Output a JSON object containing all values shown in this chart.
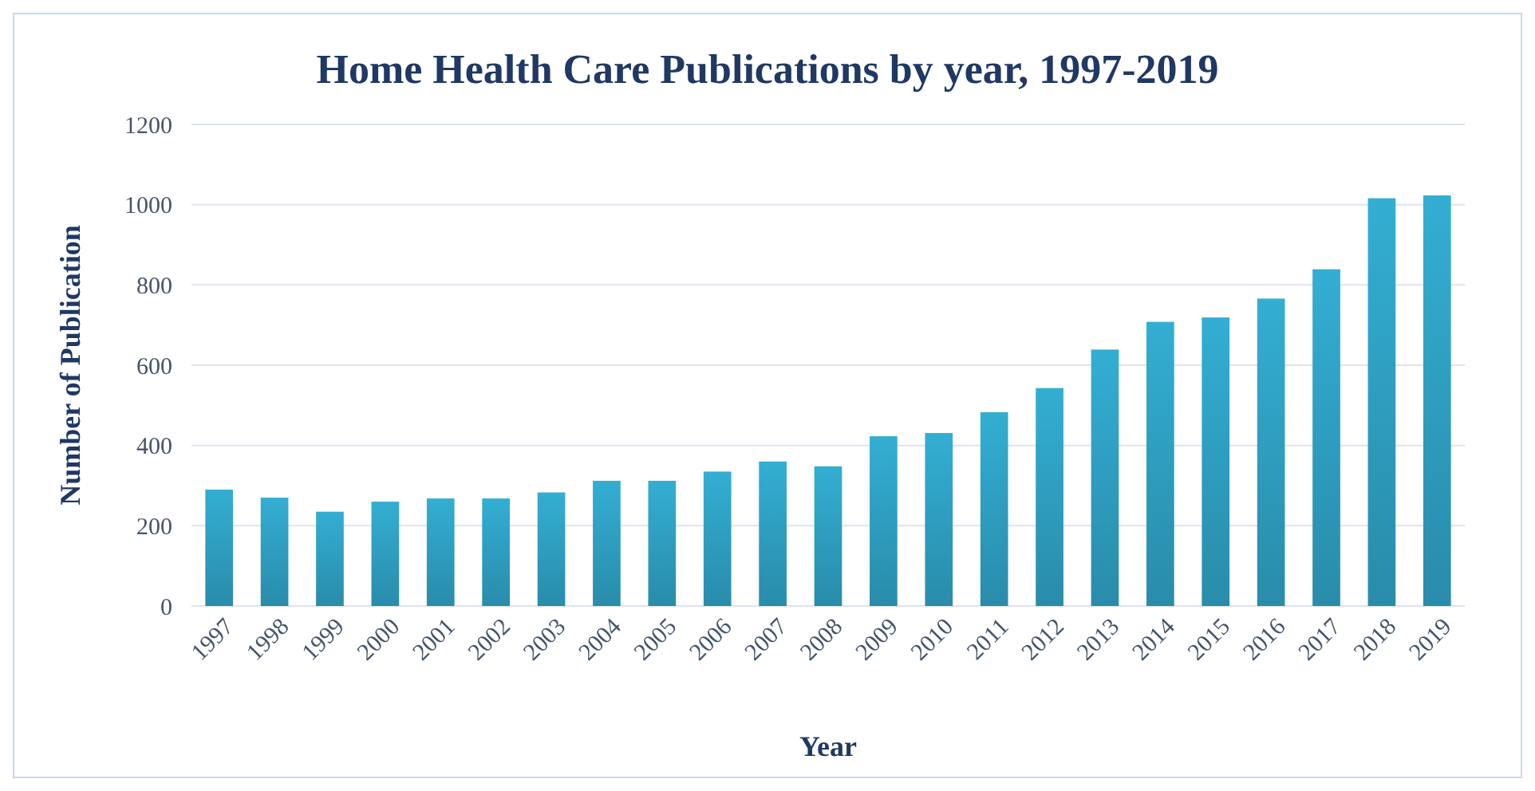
{
  "chart_data": {
    "type": "bar",
    "title": "Home Health Care Publications by year, 1997-2019",
    "xlabel": "Year",
    "ylabel": "Number of Publication",
    "categories": [
      "1997",
      "1998",
      "1999",
      "2000",
      "2001",
      "2002",
      "2003",
      "2004",
      "2005",
      "2006",
      "2007",
      "2008",
      "2009",
      "2010",
      "2011",
      "2012",
      "2013",
      "2014",
      "2015",
      "2016",
      "2017",
      "2018",
      "2019"
    ],
    "values": [
      290,
      270,
      235,
      260,
      268,
      268,
      283,
      312,
      312,
      335,
      360,
      348,
      423,
      431,
      483,
      543,
      639,
      708,
      719,
      766,
      839,
      1016,
      1023
    ],
    "color": "#33aed3",
    "ylim": [
      0,
      1200
    ],
    "yticks": [
      0,
      200,
      400,
      600,
      800,
      1000,
      1200
    ],
    "grid": "y"
  }
}
